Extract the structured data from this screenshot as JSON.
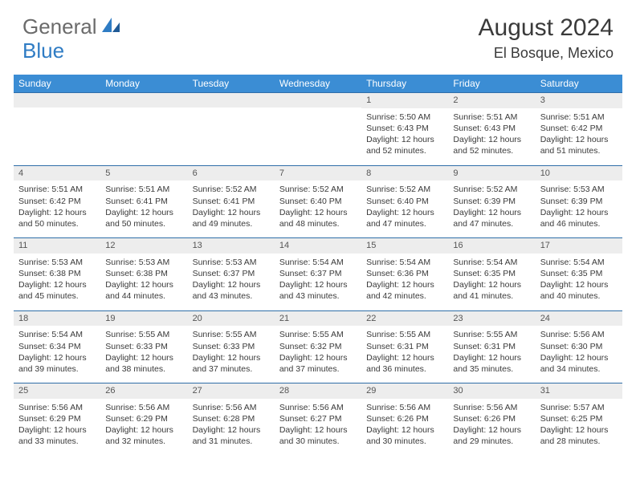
{
  "logo": {
    "word1": "General",
    "word2": "Blue"
  },
  "header": {
    "title": "August 2024",
    "location": "El Bosque, Mexico"
  },
  "colors": {
    "header_bg": "#3b8dd4",
    "header_text": "#ffffff",
    "border": "#2f6ea8",
    "daynum_bg": "#ededed",
    "text": "#3a3a3a",
    "logo_gray": "#6b6b6b",
    "logo_blue": "#2f7cc4"
  },
  "dayNames": [
    "Sunday",
    "Monday",
    "Tuesday",
    "Wednesday",
    "Thursday",
    "Friday",
    "Saturday"
  ],
  "labels": {
    "sunrise": "Sunrise:",
    "sunset": "Sunset:",
    "daylight": "Daylight:"
  },
  "weeks": [
    [
      null,
      null,
      null,
      null,
      {
        "n": "1",
        "sunrise": "5:50 AM",
        "sunset": "6:43 PM",
        "daylight": "12 hours and 52 minutes."
      },
      {
        "n": "2",
        "sunrise": "5:51 AM",
        "sunset": "6:43 PM",
        "daylight": "12 hours and 52 minutes."
      },
      {
        "n": "3",
        "sunrise": "5:51 AM",
        "sunset": "6:42 PM",
        "daylight": "12 hours and 51 minutes."
      }
    ],
    [
      {
        "n": "4",
        "sunrise": "5:51 AM",
        "sunset": "6:42 PM",
        "daylight": "12 hours and 50 minutes."
      },
      {
        "n": "5",
        "sunrise": "5:51 AM",
        "sunset": "6:41 PM",
        "daylight": "12 hours and 50 minutes."
      },
      {
        "n": "6",
        "sunrise": "5:52 AM",
        "sunset": "6:41 PM",
        "daylight": "12 hours and 49 minutes."
      },
      {
        "n": "7",
        "sunrise": "5:52 AM",
        "sunset": "6:40 PM",
        "daylight": "12 hours and 48 minutes."
      },
      {
        "n": "8",
        "sunrise": "5:52 AM",
        "sunset": "6:40 PM",
        "daylight": "12 hours and 47 minutes."
      },
      {
        "n": "9",
        "sunrise": "5:52 AM",
        "sunset": "6:39 PM",
        "daylight": "12 hours and 47 minutes."
      },
      {
        "n": "10",
        "sunrise": "5:53 AM",
        "sunset": "6:39 PM",
        "daylight": "12 hours and 46 minutes."
      }
    ],
    [
      {
        "n": "11",
        "sunrise": "5:53 AM",
        "sunset": "6:38 PM",
        "daylight": "12 hours and 45 minutes."
      },
      {
        "n": "12",
        "sunrise": "5:53 AM",
        "sunset": "6:38 PM",
        "daylight": "12 hours and 44 minutes."
      },
      {
        "n": "13",
        "sunrise": "5:53 AM",
        "sunset": "6:37 PM",
        "daylight": "12 hours and 43 minutes."
      },
      {
        "n": "14",
        "sunrise": "5:54 AM",
        "sunset": "6:37 PM",
        "daylight": "12 hours and 43 minutes."
      },
      {
        "n": "15",
        "sunrise": "5:54 AM",
        "sunset": "6:36 PM",
        "daylight": "12 hours and 42 minutes."
      },
      {
        "n": "16",
        "sunrise": "5:54 AM",
        "sunset": "6:35 PM",
        "daylight": "12 hours and 41 minutes."
      },
      {
        "n": "17",
        "sunrise": "5:54 AM",
        "sunset": "6:35 PM",
        "daylight": "12 hours and 40 minutes."
      }
    ],
    [
      {
        "n": "18",
        "sunrise": "5:54 AM",
        "sunset": "6:34 PM",
        "daylight": "12 hours and 39 minutes."
      },
      {
        "n": "19",
        "sunrise": "5:55 AM",
        "sunset": "6:33 PM",
        "daylight": "12 hours and 38 minutes."
      },
      {
        "n": "20",
        "sunrise": "5:55 AM",
        "sunset": "6:33 PM",
        "daylight": "12 hours and 37 minutes."
      },
      {
        "n": "21",
        "sunrise": "5:55 AM",
        "sunset": "6:32 PM",
        "daylight": "12 hours and 37 minutes."
      },
      {
        "n": "22",
        "sunrise": "5:55 AM",
        "sunset": "6:31 PM",
        "daylight": "12 hours and 36 minutes."
      },
      {
        "n": "23",
        "sunrise": "5:55 AM",
        "sunset": "6:31 PM",
        "daylight": "12 hours and 35 minutes."
      },
      {
        "n": "24",
        "sunrise": "5:56 AM",
        "sunset": "6:30 PM",
        "daylight": "12 hours and 34 minutes."
      }
    ],
    [
      {
        "n": "25",
        "sunrise": "5:56 AM",
        "sunset": "6:29 PM",
        "daylight": "12 hours and 33 minutes."
      },
      {
        "n": "26",
        "sunrise": "5:56 AM",
        "sunset": "6:29 PM",
        "daylight": "12 hours and 32 minutes."
      },
      {
        "n": "27",
        "sunrise": "5:56 AM",
        "sunset": "6:28 PM",
        "daylight": "12 hours and 31 minutes."
      },
      {
        "n": "28",
        "sunrise": "5:56 AM",
        "sunset": "6:27 PM",
        "daylight": "12 hours and 30 minutes."
      },
      {
        "n": "29",
        "sunrise": "5:56 AM",
        "sunset": "6:26 PM",
        "daylight": "12 hours and 30 minutes."
      },
      {
        "n": "30",
        "sunrise": "5:56 AM",
        "sunset": "6:26 PM",
        "daylight": "12 hours and 29 minutes."
      },
      {
        "n": "31",
        "sunrise": "5:57 AM",
        "sunset": "6:25 PM",
        "daylight": "12 hours and 28 minutes."
      }
    ]
  ]
}
